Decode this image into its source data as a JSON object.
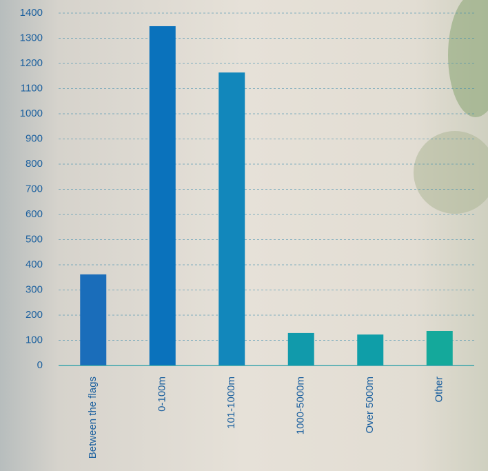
{
  "chart_data": {
    "type": "bar",
    "categories": [
      "Between the flags",
      "0-100m",
      "101-1000m",
      "1000-5000m",
      "Over 5000m",
      "Other"
    ],
    "values": [
      362,
      1348,
      1164,
      129,
      123,
      137
    ],
    "colors": [
      "#1a6dba",
      "#0a72bc",
      "#1287bb",
      "#119aab",
      "#0f9ea8",
      "#14a99b"
    ],
    "ylim": [
      0,
      1400
    ],
    "yticks": [
      0,
      100,
      200,
      300,
      400,
      500,
      600,
      700,
      800,
      900,
      1000,
      1100,
      1200,
      1300,
      1400
    ],
    "grid": true
  }
}
